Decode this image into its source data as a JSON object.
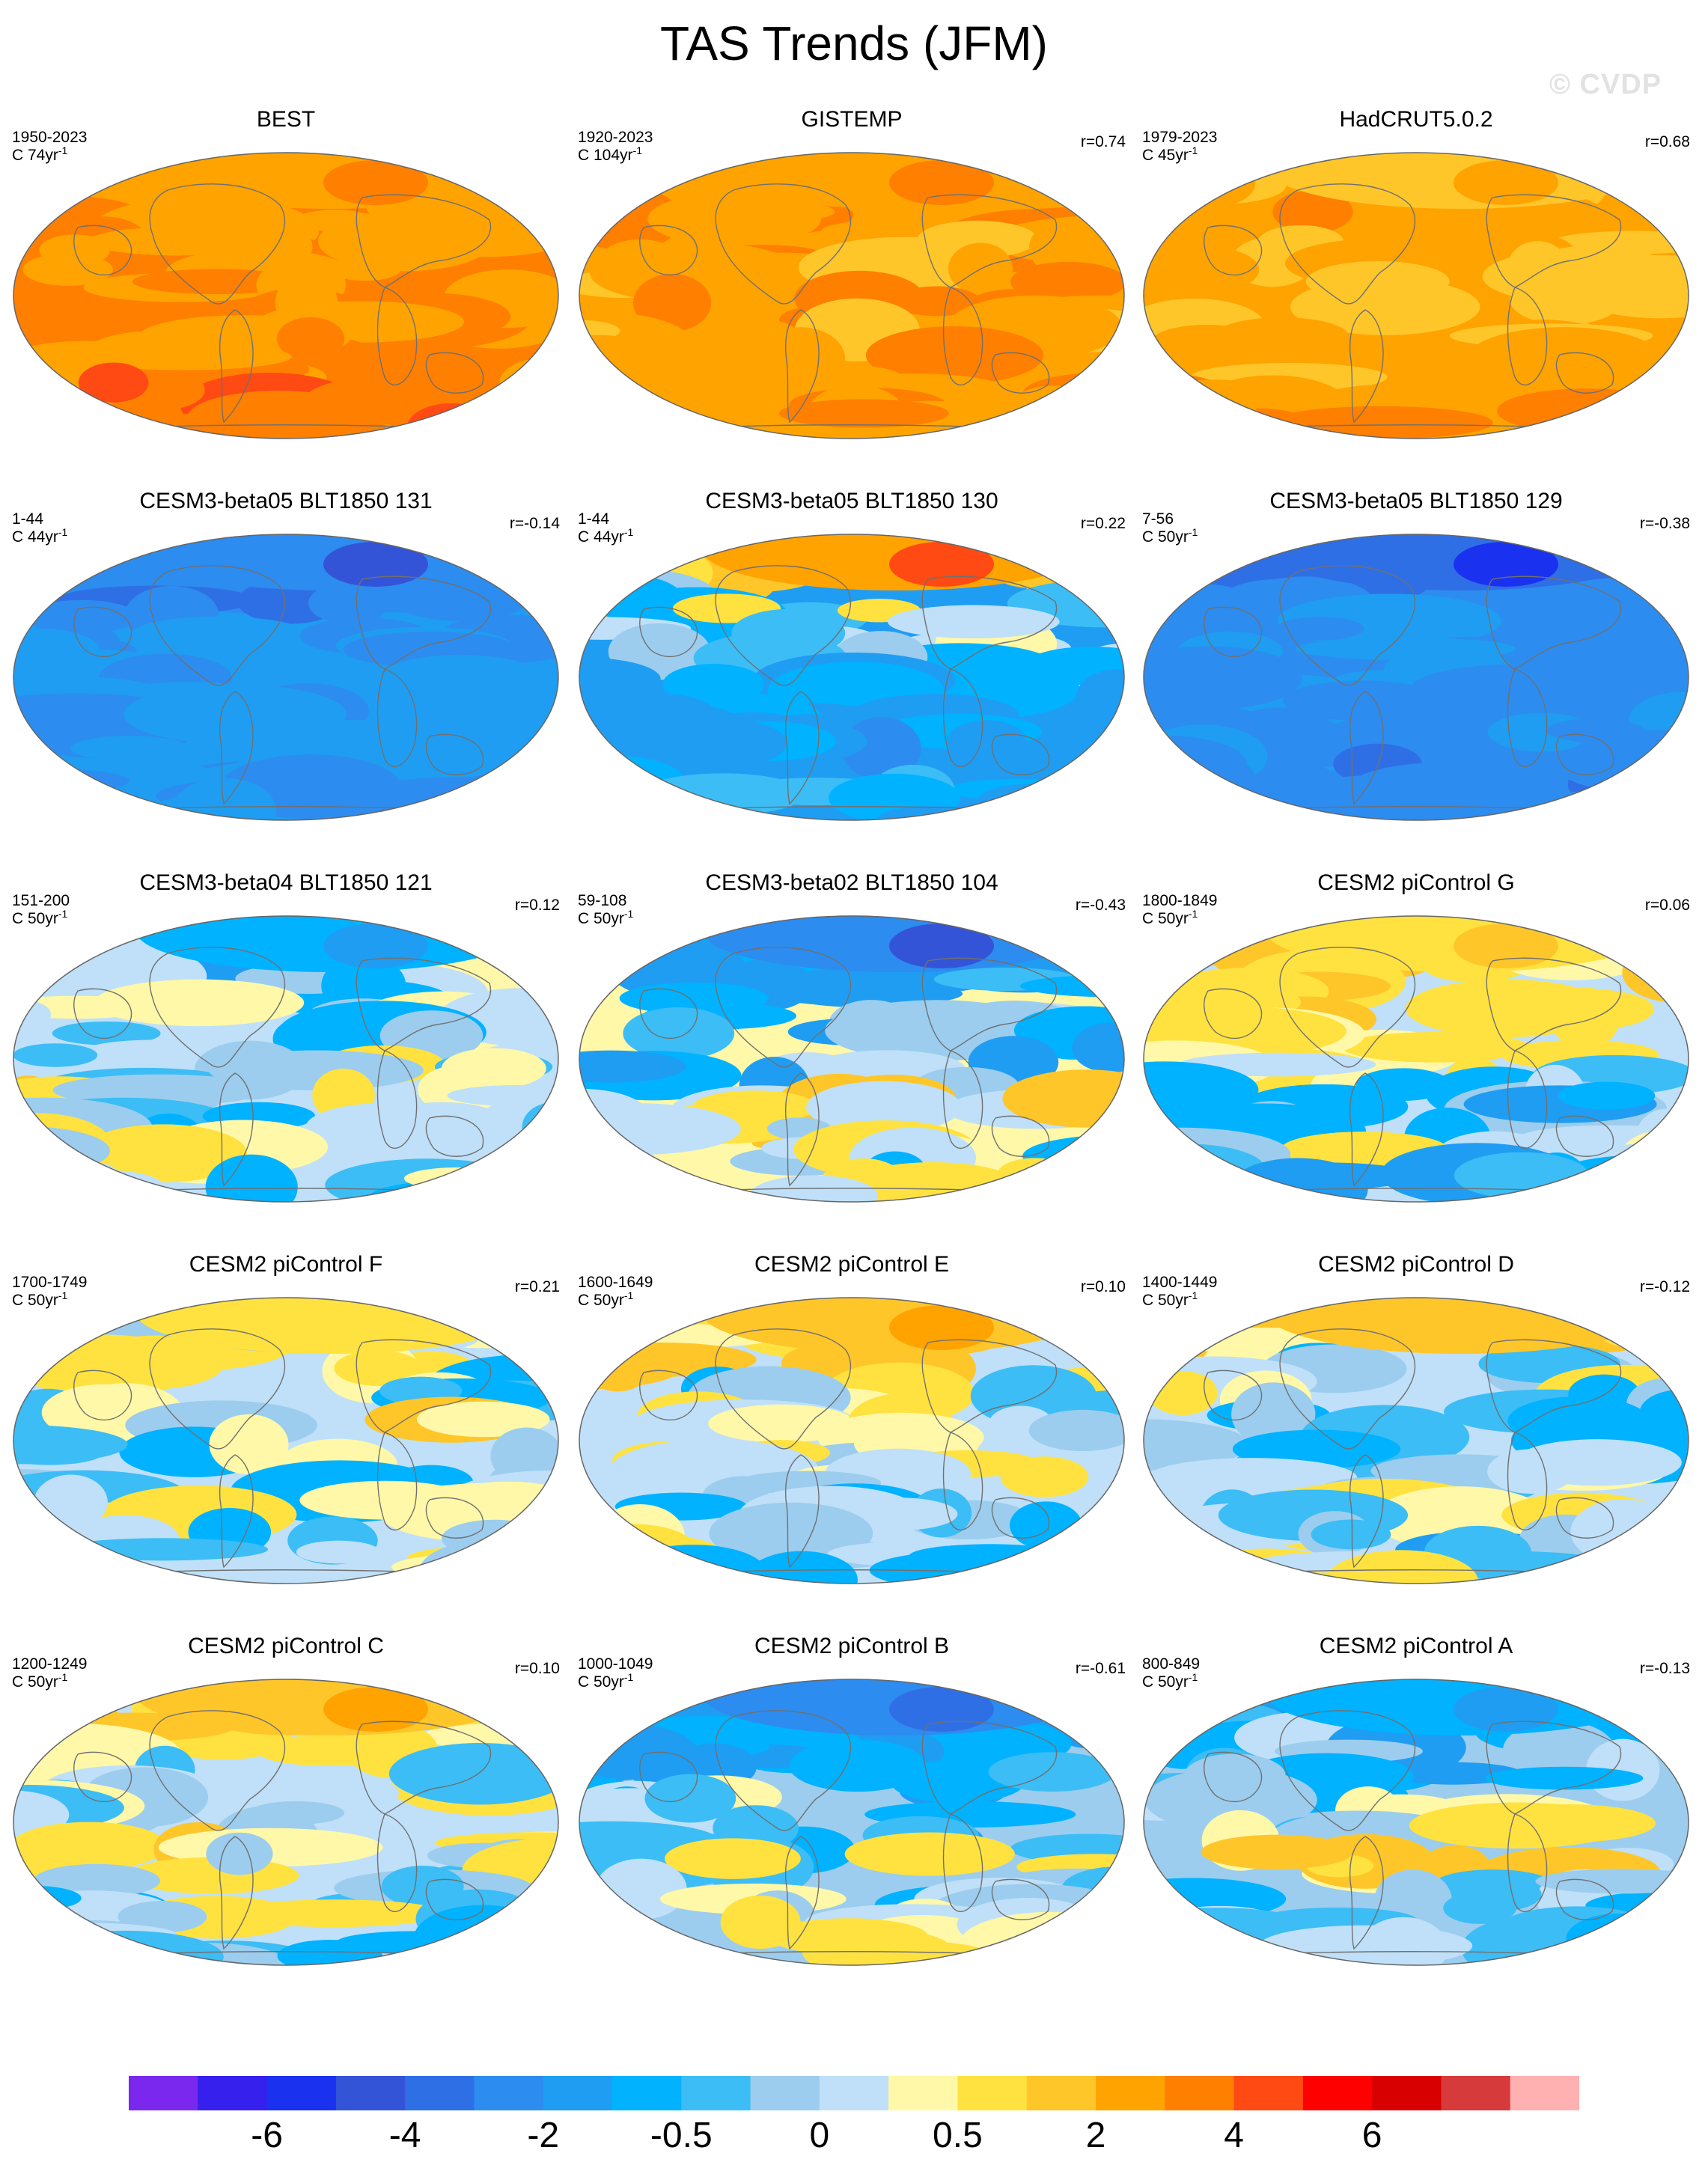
{
  "title": "TAS Trends (JFM)",
  "watermark": "© CVDP",
  "chart_data": {
    "type": "heatmap",
    "title": "TAS Trends (JFM)",
    "panels": [
      {
        "title": "BEST",
        "years": "1950-2023",
        "units": "C 74yr",
        "units_sup": "-1",
        "corr": "",
        "warmth": 3.0,
        "arctic": 2.2
      },
      {
        "title": "GISTEMP",
        "years": "1920-2023",
        "units": "C 104yr",
        "units_sup": "-1",
        "corr": "r=0.74",
        "warmth": 2.8,
        "arctic": 2.2
      },
      {
        "title": "HadCRUT5.0.2",
        "years": "1979-2023",
        "units": "C 45yr",
        "units_sup": "-1",
        "corr": "r=0.68",
        "warmth": 2.4,
        "arctic": 1.6
      },
      {
        "title": "CESM3-beta05 BLT1850 131",
        "years": "1-44",
        "units": "C 44yr",
        "units_sup": "-1",
        "corr": "r=-0.14",
        "warmth": -2.0,
        "arctic": -3.0
      },
      {
        "title": "CESM3-beta05 BLT1850 130",
        "years": "1-44",
        "units": "C 44yr",
        "units_sup": "-1",
        "corr": "r=0.22",
        "warmth": -1.2,
        "arctic": 2.5
      },
      {
        "title": "CESM3-beta05 BLT1850 129",
        "years": "7-56",
        "units": "C 50yr",
        "units_sup": "-1",
        "corr": "r=-0.38",
        "warmth": -2.3,
        "arctic": -3.2
      },
      {
        "title": "CESM3-beta04 BLT1850 121",
        "years": "151-200",
        "units": "C 50yr",
        "units_sup": "-1",
        "corr": "r=0.12",
        "warmth": 0.2,
        "arctic": -0.8
      },
      {
        "title": "CESM3-beta02 BLT1850 104",
        "years": "59-108",
        "units": "C 50yr",
        "units_sup": "-1",
        "corr": "r=-0.43",
        "warmth": 0.3,
        "arctic": -2.6
      },
      {
        "title": "CESM2 piControl G",
        "years": "1800-1849",
        "units": "C 50yr",
        "units_sup": "-1",
        "corr": "r=0.06",
        "warmth": 0.0,
        "arctic": 0.8
      },
      {
        "title": "CESM2 piControl F",
        "years": "1700-1749",
        "units": "C 50yr",
        "units_sup": "-1",
        "corr": "r=0.21",
        "warmth": 0.1,
        "arctic": 0.6
      },
      {
        "title": "CESM2 piControl E",
        "years": "1600-1649",
        "units": "C 50yr",
        "units_sup": "-1",
        "corr": "r=0.10",
        "warmth": 0.1,
        "arctic": 1.5
      },
      {
        "title": "CESM2 piControl D",
        "years": "1400-1449",
        "units": "C 50yr",
        "units_sup": "-1",
        "corr": "r=-0.12",
        "warmth": 0.0,
        "arctic": 1.2
      },
      {
        "title": "CESM2 piControl C",
        "years": "1200-1249",
        "units": "C 50yr",
        "units_sup": "-1",
        "corr": "r=0.10",
        "warmth": 0.1,
        "arctic": 1.4
      },
      {
        "title": "CESM2 piControl B",
        "years": "1000-1049",
        "units": "C 50yr",
        "units_sup": "-1",
        "corr": "r=-0.61",
        "warmth": -0.1,
        "arctic": -2.4
      },
      {
        "title": "CESM2 piControl A",
        "years": "800-849",
        "units": "C 50yr",
        "units_sup": "-1",
        "corr": "r=-0.13",
        "warmth": -0.1,
        "arctic": -0.8
      }
    ],
    "colorbar": {
      "levels": [
        -8,
        -7,
        -6,
        -5,
        -4,
        -3,
        -2,
        -1,
        -0.5,
        -0.25,
        0,
        0.25,
        0.5,
        1,
        2,
        3,
        4,
        5,
        6,
        7,
        8
      ],
      "colors": [
        "#7a28ee",
        "#3520ee",
        "#1a32f0",
        "#3454d8",
        "#2f6fe6",
        "#2d8cef",
        "#1f9df2",
        "#00b2ff",
        "#3cbdf5",
        "#9ccdee",
        "#bfe0f8",
        "#fff8a8",
        "#ffe240",
        "#ffc62a",
        "#ffa300",
        "#ff7f00",
        "#ff4a14",
        "#ff0000",
        "#d80000",
        "#d63a3a",
        "#ffb0b0"
      ],
      "tick_labels": [
        "-6",
        "-4",
        "-2",
        "-0.5",
        "0",
        "0.5",
        "2",
        "4",
        "6"
      ]
    }
  }
}
